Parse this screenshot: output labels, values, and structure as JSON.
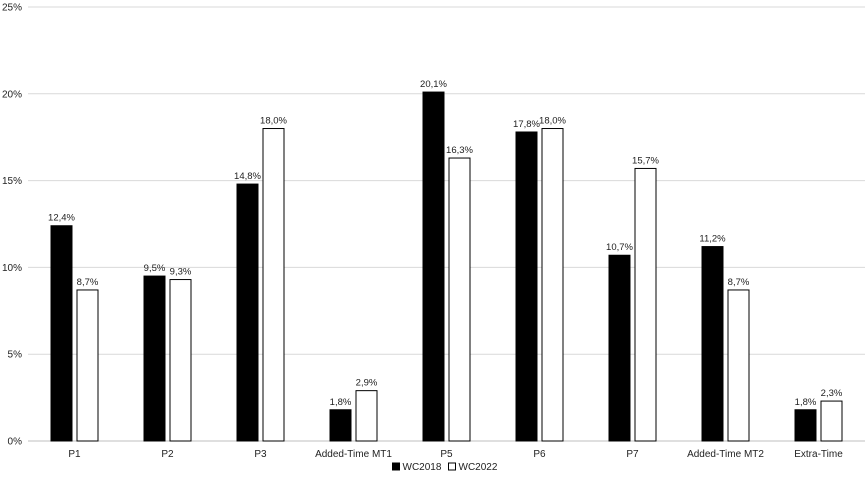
{
  "chart_data": {
    "type": "bar",
    "categories": [
      "P1",
      "P2",
      "P3",
      "Added-Time MT1",
      "P5",
      "P6",
      "P7",
      "Added-Time MT2",
      "Extra-Time"
    ],
    "series": [
      {
        "name": "WC2018",
        "color": "#000000",
        "values": [
          12.4,
          9.5,
          14.8,
          1.8,
          20.1,
          17.8,
          10.7,
          11.2,
          1.8
        ],
        "labels": [
          "12,4%",
          "9,5%",
          "14,8%",
          "1,8%",
          "20,1%",
          "17,8%",
          "10,7%",
          "11,2%",
          "1,8%"
        ]
      },
      {
        "name": "WC2022",
        "color": "#ffffff",
        "values": [
          8.7,
          9.3,
          18.0,
          2.9,
          16.3,
          18.0,
          15.7,
          8.7,
          2.3
        ],
        "labels": [
          "8,7%",
          "9,3%",
          "18,0%",
          "2,9%",
          "16,3%",
          "18,0%",
          "15,7%",
          "8,7%",
          "2,3%"
        ]
      }
    ],
    "ylim": [
      0,
      25
    ],
    "yticks": [
      0,
      5,
      10,
      15,
      20,
      25
    ],
    "ytick_labels": [
      "0%",
      "5%",
      "10%",
      "15%",
      "20%",
      "25%"
    ],
    "grid": true,
    "legend_position": "bottom-center",
    "title": "",
    "xlabel": "",
    "ylabel": ""
  }
}
